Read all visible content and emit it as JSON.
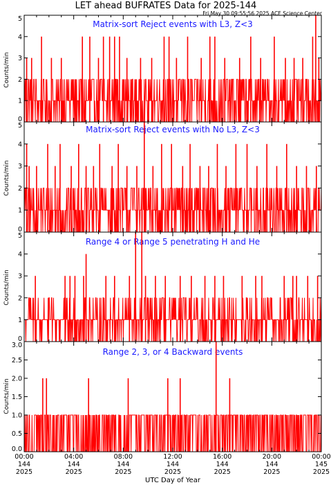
{
  "title": "LET ahead BUFRATES Data for 2025-144",
  "timestamp": "Fri May 30 09:55:56 2025 ACE Science Center",
  "xlabel": "UTC Day of Year",
  "colors": {
    "series": "#ff0000",
    "panel_title": "#1a1aff",
    "frame": "#000000"
  },
  "x_ticks": [
    {
      "time": "00:00",
      "doy": "144",
      "year": "2025"
    },
    {
      "time": "04:00",
      "doy": "144",
      "year": "2025"
    },
    {
      "time": "08:00",
      "doy": "144",
      "year": "2025"
    },
    {
      "time": "12:00",
      "doy": "144",
      "year": "2025"
    },
    {
      "time": "16:00",
      "doy": "144",
      "year": "2025"
    },
    {
      "time": "20:00",
      "doy": "144",
      "year": "2025"
    },
    {
      "time": "00:00",
      "doy": "145",
      "year": "2025"
    }
  ],
  "chart_data": [
    {
      "type": "line",
      "panel_title": "Matrix-sort Reject events with L3, Z<3",
      "ylabel": "Counts/min",
      "xlim_hours": [
        0,
        24
      ],
      "ylim": [
        0,
        5
      ],
      "yticks": [
        "0",
        "1",
        "2",
        "3",
        "4",
        "5"
      ],
      "spikes": [
        {
          "t": 0.2,
          "v": 3
        },
        {
          "t": 0.6,
          "v": 3
        },
        {
          "t": 1.4,
          "v": 4
        },
        {
          "t": 2.2,
          "v": 3
        },
        {
          "t": 3.0,
          "v": 3
        },
        {
          "t": 4.7,
          "v": 4
        },
        {
          "t": 5.3,
          "v": 4
        },
        {
          "t": 6.0,
          "v": 3
        },
        {
          "t": 6.4,
          "v": 4
        },
        {
          "t": 6.9,
          "v": 4
        },
        {
          "t": 7.3,
          "v": 4
        },
        {
          "t": 7.7,
          "v": 4
        },
        {
          "t": 8.3,
          "v": 3
        },
        {
          "t": 9.4,
          "v": 3
        },
        {
          "t": 10.3,
          "v": 3
        },
        {
          "t": 11.3,
          "v": 4
        },
        {
          "t": 11.7,
          "v": 4
        },
        {
          "t": 12.3,
          "v": 3
        },
        {
          "t": 13.2,
          "v": 4
        },
        {
          "t": 14.3,
          "v": 3
        },
        {
          "t": 15.0,
          "v": 4
        },
        {
          "t": 15.4,
          "v": 4
        },
        {
          "t": 16.2,
          "v": 3
        },
        {
          "t": 17.4,
          "v": 3
        },
        {
          "t": 18.3,
          "v": 4
        },
        {
          "t": 19.1,
          "v": 3
        },
        {
          "t": 20.2,
          "v": 4
        },
        {
          "t": 21.1,
          "v": 3
        },
        {
          "t": 21.8,
          "v": 3
        },
        {
          "t": 22.5,
          "v": 3
        },
        {
          "t": 23.3,
          "v": 4
        },
        {
          "t": 23.55,
          "v": 5
        },
        {
          "t": 23.8,
          "v": 3
        }
      ]
    },
    {
      "type": "line",
      "panel_title": "Matrix-sort Reject events with No L3, Z<3",
      "ylabel": "Counts/min",
      "xlim_hours": [
        0,
        24
      ],
      "ylim": [
        0,
        5
      ],
      "yticks": [
        "0",
        "1",
        "2",
        "3",
        "4",
        "5"
      ],
      "spikes": [
        {
          "t": 0.2,
          "v": 4
        },
        {
          "t": 0.4,
          "v": 3
        },
        {
          "t": 1.0,
          "v": 3
        },
        {
          "t": 1.9,
          "v": 4
        },
        {
          "t": 2.5,
          "v": 3
        },
        {
          "t": 2.9,
          "v": 4
        },
        {
          "t": 3.8,
          "v": 3
        },
        {
          "t": 4.4,
          "v": 4
        },
        {
          "t": 5.0,
          "v": 3
        },
        {
          "t": 5.6,
          "v": 3
        },
        {
          "t": 6.1,
          "v": 4
        },
        {
          "t": 7.1,
          "v": 3
        },
        {
          "t": 7.6,
          "v": 4
        },
        {
          "t": 8.3,
          "v": 3
        },
        {
          "t": 9.1,
          "v": 3
        },
        {
          "t": 9.7,
          "v": 5
        },
        {
          "t": 10.4,
          "v": 3
        },
        {
          "t": 11.1,
          "v": 4
        },
        {
          "t": 11.9,
          "v": 4
        },
        {
          "t": 12.8,
          "v": 3
        },
        {
          "t": 13.4,
          "v": 4
        },
        {
          "t": 14.2,
          "v": 3
        },
        {
          "t": 14.9,
          "v": 3
        },
        {
          "t": 15.6,
          "v": 4
        },
        {
          "t": 16.3,
          "v": 3
        },
        {
          "t": 17.1,
          "v": 4
        },
        {
          "t": 18.0,
          "v": 4
        },
        {
          "t": 18.8,
          "v": 3
        },
        {
          "t": 19.6,
          "v": 4
        },
        {
          "t": 20.4,
          "v": 3
        },
        {
          "t": 21.2,
          "v": 4
        },
        {
          "t": 22.0,
          "v": 3
        },
        {
          "t": 22.8,
          "v": 3
        },
        {
          "t": 23.6,
          "v": 3
        }
      ]
    },
    {
      "type": "line",
      "panel_title": "Range 4 or Range 5 penetrating H and He",
      "ylabel": "Counts/min",
      "xlim_hours": [
        0,
        24
      ],
      "ylim": [
        0,
        5
      ],
      "yticks": [
        "0",
        "1",
        "2",
        "3",
        "4",
        "5"
      ],
      "spikes": [
        {
          "t": 0.9,
          "v": 3
        },
        {
          "t": 3.3,
          "v": 3
        },
        {
          "t": 3.7,
          "v": 3
        },
        {
          "t": 4.1,
          "v": 3
        },
        {
          "t": 4.8,
          "v": 3
        },
        {
          "t": 5.0,
          "v": 4
        },
        {
          "t": 6.6,
          "v": 3
        },
        {
          "t": 7.3,
          "v": 3
        },
        {
          "t": 8.5,
          "v": 3
        },
        {
          "t": 9.0,
          "v": 5
        },
        {
          "t": 9.5,
          "v": 5
        },
        {
          "t": 9.8,
          "v": 3
        },
        {
          "t": 10.6,
          "v": 3
        },
        {
          "t": 11.4,
          "v": 3
        },
        {
          "t": 12.6,
          "v": 3
        },
        {
          "t": 13.5,
          "v": 3
        },
        {
          "t": 14.6,
          "v": 3
        },
        {
          "t": 15.4,
          "v": 3
        },
        {
          "t": 16.1,
          "v": 3
        },
        {
          "t": 17.6,
          "v": 3
        },
        {
          "t": 18.7,
          "v": 3
        },
        {
          "t": 19.2,
          "v": 3
        },
        {
          "t": 21.0,
          "v": 3
        },
        {
          "t": 21.7,
          "v": 3
        },
        {
          "t": 22.0,
          "v": 3
        },
        {
          "t": 22.9,
          "v": 3
        },
        {
          "t": 23.7,
          "v": 3
        }
      ]
    },
    {
      "type": "line",
      "panel_title": "Range 2, 3, or 4 Backward events",
      "ylabel": "Counts/min",
      "xlim_hours": [
        0,
        24
      ],
      "ylim": [
        0,
        3
      ],
      "yticks": [
        "0.0",
        "0.5",
        "1.0",
        "1.5",
        "2.0",
        "2.5",
        "3.0"
      ],
      "spikes": [
        {
          "t": 1.5,
          "v": 2
        },
        {
          "t": 1.8,
          "v": 2
        },
        {
          "t": 5.2,
          "v": 2
        },
        {
          "t": 8.4,
          "v": 2
        },
        {
          "t": 11.6,
          "v": 2
        },
        {
          "t": 12.6,
          "v": 2
        },
        {
          "t": 15.5,
          "v": 3
        },
        {
          "t": 16.6,
          "v": 2
        }
      ]
    }
  ]
}
